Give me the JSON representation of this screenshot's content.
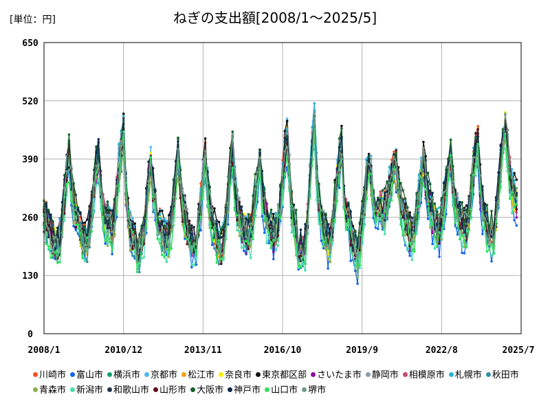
{
  "chart_data": {
    "type": "line",
    "title": "ねぎの支出額[2008/1～2025/5]",
    "unit_label": "[単位：円]",
    "ylim": [
      0,
      650
    ],
    "yticks": [
      0,
      130,
      260,
      390,
      520,
      650
    ],
    "xlim": [
      "2008-01",
      "2025-07"
    ],
    "xticks": [
      "2008/1",
      "2010/12",
      "2013/11",
      "2016/10",
      "2019/9",
      "2022/8",
      "2025/7"
    ],
    "grid": true,
    "legend_position": "bottom",
    "baseline_profile": {
      "2008": [
        265,
        255,
        240,
        225,
        215,
        205,
        200,
        215,
        250,
        305,
        360,
        395
      ],
      "2009": [
        340,
        300,
        270,
        250,
        230,
        215,
        205,
        210,
        240,
        280,
        330,
        380
      ],
      "2010": [
        400,
        330,
        280,
        260,
        250,
        240,
        235,
        265,
        320,
        380,
        420,
        450
      ],
      "2011": [
        330,
        270,
        240,
        220,
        210,
        190,
        185,
        200,
        235,
        280,
        340,
        385
      ],
      "2012": [
        320,
        280,
        260,
        240,
        230,
        215,
        210,
        220,
        250,
        300,
        355,
        400
      ],
      "2013": [
        330,
        290,
        265,
        240,
        225,
        205,
        200,
        215,
        250,
        300,
        350,
        390
      ],
      "2014": [
        330,
        290,
        255,
        230,
        215,
        200,
        195,
        210,
        250,
        310,
        370,
        420
      ],
      "2015": [
        330,
        290,
        265,
        245,
        235,
        225,
        220,
        230,
        260,
        310,
        360,
        395
      ],
      "2016": [
        330,
        290,
        265,
        245,
        235,
        225,
        230,
        255,
        300,
        350,
        410,
        440
      ],
      "2017": [
        360,
        290,
        255,
        230,
        210,
        190,
        185,
        205,
        260,
        340,
        420,
        470
      ],
      "2018": [
        360,
        300,
        260,
        240,
        225,
        210,
        215,
        245,
        300,
        350,
        390,
        420
      ],
      "2019": [
        310,
        270,
        250,
        230,
        210,
        185,
        180,
        200,
        250,
        300,
        350,
        390
      ],
      "2020": [
        360,
        320,
        300,
        290,
        285,
        270,
        280,
        300,
        330,
        350,
        370,
        380
      ],
      "2021": [
        340,
        300,
        280,
        260,
        245,
        230,
        225,
        240,
        275,
        315,
        355,
        385
      ],
      "2022": [
        350,
        310,
        290,
        270,
        250,
        235,
        240,
        265,
        300,
        335,
        365,
        395
      ],
      "2023": [
        330,
        290,
        275,
        260,
        245,
        240,
        245,
        270,
        320,
        370,
        410,
        430
      ],
      "2024": [
        330,
        285,
        260,
        240,
        230,
        225,
        235,
        265,
        320,
        380,
        430,
        460
      ],
      "2025": [
        420,
        360,
        330,
        310,
        300
      ]
    },
    "series": [
      {
        "name": "川崎市",
        "color": "#f4511e",
        "offset": 5
      },
      {
        "name": "富山市",
        "color": "#1565e8",
        "offset": -35
      },
      {
        "name": "横浜市",
        "color": "#12a070",
        "offset": 0
      },
      {
        "name": "京都市",
        "color": "#4fb8f0",
        "offset": 10
      },
      {
        "name": "松江市",
        "color": "#f2a012",
        "offset": -5
      },
      {
        "name": "奈良市",
        "color": "#f5f000",
        "offset": 0
      },
      {
        "name": "東京都区部",
        "color": "#111111",
        "offset": 15
      },
      {
        "name": "さいたま市",
        "color": "#8a0da0",
        "offset": -10
      },
      {
        "name": "静岡市",
        "color": "#8c9aa8",
        "offset": 5
      },
      {
        "name": "相模原市",
        "color": "#c54b6c",
        "offset": 0
      },
      {
        "name": "札幌市",
        "color": "#2ab4d0",
        "offset": 10
      },
      {
        "name": "秋田市",
        "color": "#2f8fa6",
        "offset": -15
      },
      {
        "name": "青森市",
        "color": "#8bb050",
        "offset": -20
      },
      {
        "name": "新潟市",
        "color": "#4fdcb0",
        "offset": -30
      },
      {
        "name": "和歌山市",
        "color": "#26384c",
        "offset": 5
      },
      {
        "name": "山形市",
        "color": "#5a1020",
        "offset": -5
      },
      {
        "name": "大阪市",
        "color": "#16612a",
        "offset": 15
      },
      {
        "name": "神戸市",
        "color": "#0e2b4a",
        "offset": 10
      },
      {
        "name": "山口市",
        "color": "#33e060",
        "offset": -25
      },
      {
        "name": "堺市",
        "color": "#6f9a82",
        "offset": 0
      }
    ]
  }
}
